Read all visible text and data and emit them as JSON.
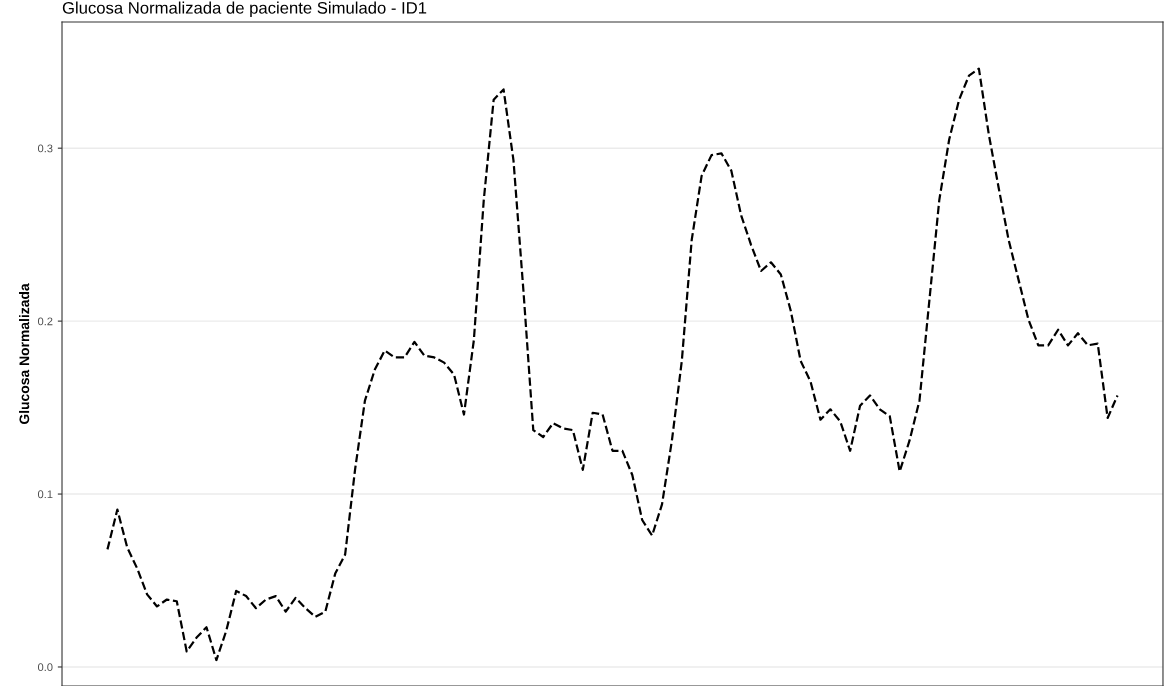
{
  "chart_data": {
    "type": "line",
    "title": "Glucosa Normalizada de paciente Simulado - ID1",
    "ylabel": "Glucosa Normalizada",
    "categories": [
      null,
      null,
      null,
      null,
      null,
      null,
      null,
      null,
      null,
      null,
      null,
      null,
      null,
      null,
      null,
      null,
      null,
      null,
      null,
      null,
      null,
      null,
      null,
      null,
      null,
      null,
      null,
      null,
      null,
      null,
      null,
      null,
      null,
      null,
      null,
      null,
      null,
      null,
      null,
      null,
      null,
      null,
      null,
      null,
      null,
      null,
      null,
      null,
      null,
      null,
      null,
      null,
      null,
      null,
      null,
      null,
      null,
      null,
      null,
      null,
      null,
      null,
      null,
      null,
      null,
      null,
      null,
      null,
      null,
      null,
      null,
      null,
      null,
      null,
      null,
      null,
      null,
      null,
      null,
      null,
      null,
      null,
      null,
      null,
      null,
      null,
      null,
      null,
      null,
      null,
      null,
      null,
      null,
      null,
      null,
      null,
      null,
      null,
      null,
      null,
      null,
      null,
      null
    ],
    "series": [
      {
        "color": "#000000",
        "values": [
          0.068,
          0.091,
          0.069,
          0.057,
          0.042,
          0.035,
          0.039,
          0.038,
          0.009,
          0.017,
          0.023,
          0.004,
          0.021,
          0.044,
          0.041,
          0.034,
          0.039,
          0.041,
          0.032,
          0.04,
          0.034,
          0.029,
          0.032,
          0.054,
          0.065,
          0.114,
          0.154,
          0.172,
          0.183,
          0.179,
          0.179,
          0.188,
          0.18,
          0.179,
          0.176,
          0.169,
          0.146,
          0.189,
          0.27,
          0.328,
          0.334,
          0.293,
          0.218,
          0.137,
          0.133,
          0.141,
          0.138,
          0.137,
          0.114,
          0.147,
          0.146,
          0.125,
          0.125,
          0.111,
          0.085,
          0.076,
          0.094,
          0.131,
          0.177,
          0.247,
          0.284,
          0.296,
          0.297,
          0.287,
          0.261,
          0.244,
          0.229,
          0.234,
          0.227,
          0.206,
          0.177,
          0.165,
          0.143,
          0.149,
          0.142,
          0.125,
          0.151,
          0.157,
          0.149,
          0.145,
          0.113,
          0.131,
          0.154,
          0.212,
          0.27,
          0.305,
          0.328,
          0.342,
          0.346,
          0.308,
          0.277,
          0.247,
          0.224,
          0.201,
          0.186,
          0.186,
          0.195,
          0.186,
          0.193,
          0.186,
          0.187,
          0.144,
          0.157
        ]
      }
    ],
    "ylim": [
      -0.011,
      0.373
    ],
    "yticks": [
      {
        "value": 0,
        "label": "0.0"
      },
      0.1,
      0.2,
      0.3
    ],
    "grid": "y",
    "line_style": "dashed",
    "marker": "none"
  }
}
